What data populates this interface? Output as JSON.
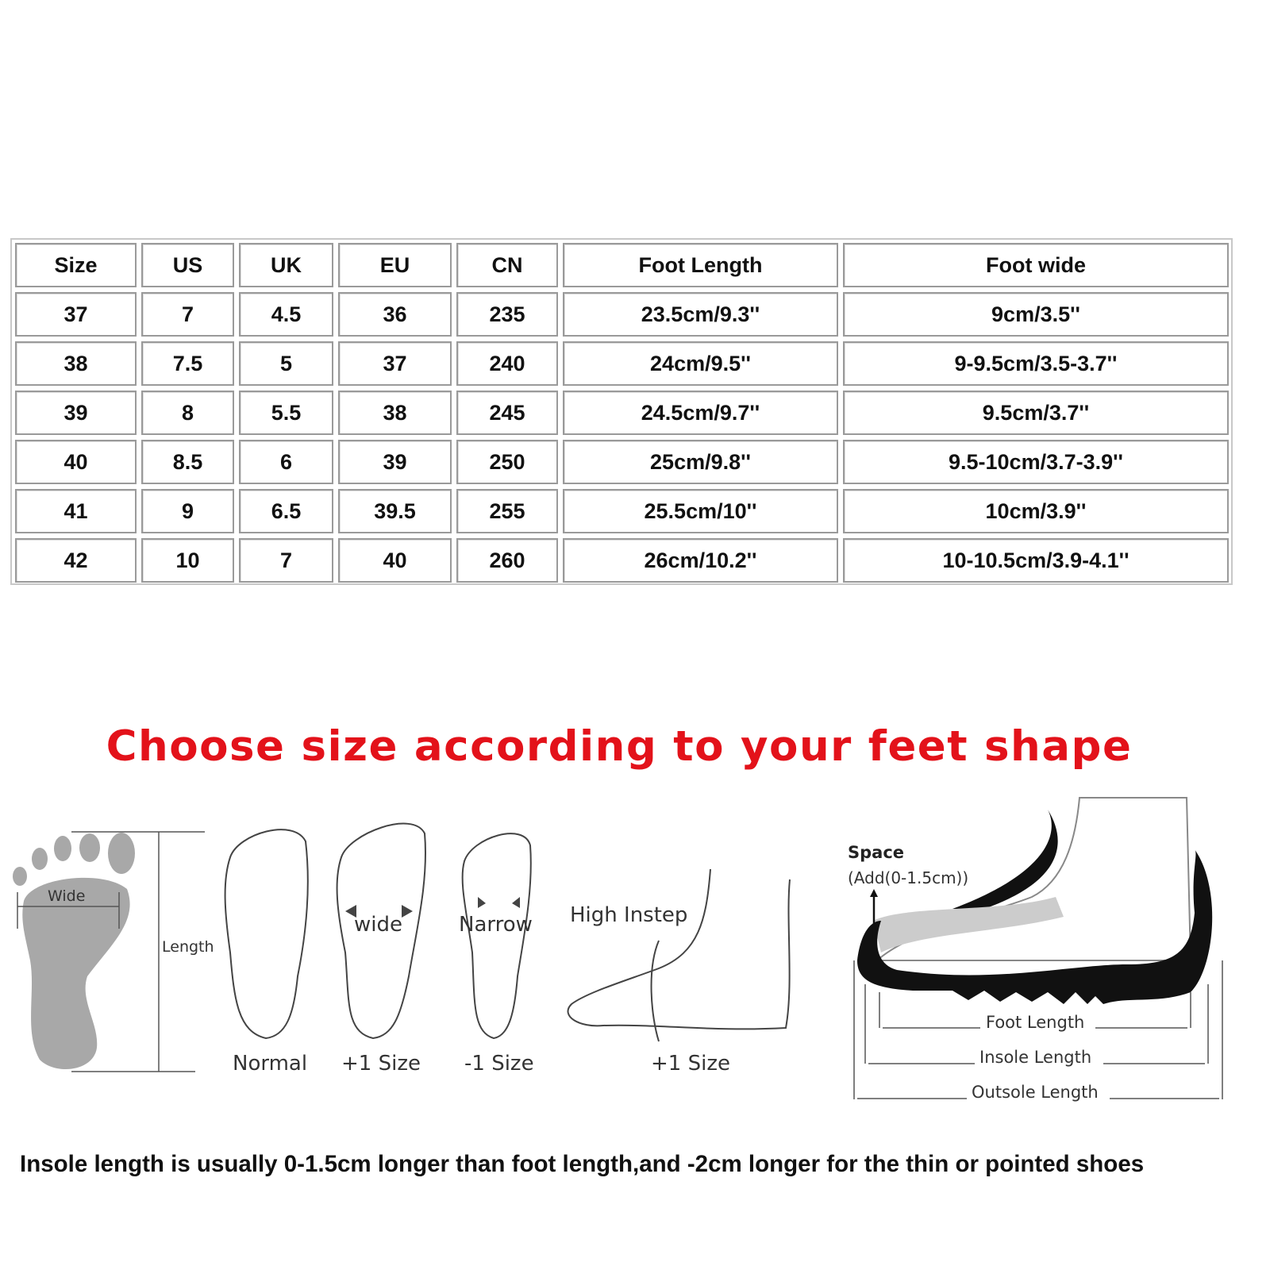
{
  "table": {
    "headers": [
      "Size",
      "US",
      "UK",
      "EU",
      "CN",
      "Foot Length",
      "Foot wide"
    ],
    "rows": [
      [
        "37",
        "7",
        "4.5",
        "36",
        "235",
        "23.5cm/9.3''",
        "9cm/3.5''"
      ],
      [
        "38",
        "7.5",
        "5",
        "37",
        "240",
        "24cm/9.5''",
        "9-9.5cm/3.5-3.7''"
      ],
      [
        "39",
        "8",
        "5.5",
        "38",
        "245",
        "24.5cm/9.7''",
        "9.5cm/3.7''"
      ],
      [
        "40",
        "8.5",
        "6",
        "39",
        "250",
        "25cm/9.8''",
        "9.5-10cm/3.7-3.9''"
      ],
      [
        "41",
        "9",
        "6.5",
        "39.5",
        "255",
        "25.5cm/10''",
        "10cm/3.9''"
      ],
      [
        "42",
        "10",
        "7",
        "40",
        "260",
        "26cm/10.2''",
        "10-10.5cm/3.9-4.1''"
      ]
    ]
  },
  "title": "Choose size according to your feet shape",
  "title_color": "#e3121a",
  "diagram": {
    "wide": "Wide",
    "length": "Length",
    "foot_wide": "wide",
    "foot_narrow": "Narrow",
    "high_instep": "High Instep",
    "captions": [
      "Normal",
      "+1 Size",
      "-1 Size",
      "+1 Size"
    ],
    "space": "Space",
    "space_add": "(Add(0-1.5cm))",
    "foot_length": "Foot Length",
    "insole_length": "Insole Length",
    "outsole_length": "Outsole Length"
  },
  "note": "Insole length is usually 0-1.5cm longer than foot length,and -2cm longer for the thin or pointed shoes"
}
